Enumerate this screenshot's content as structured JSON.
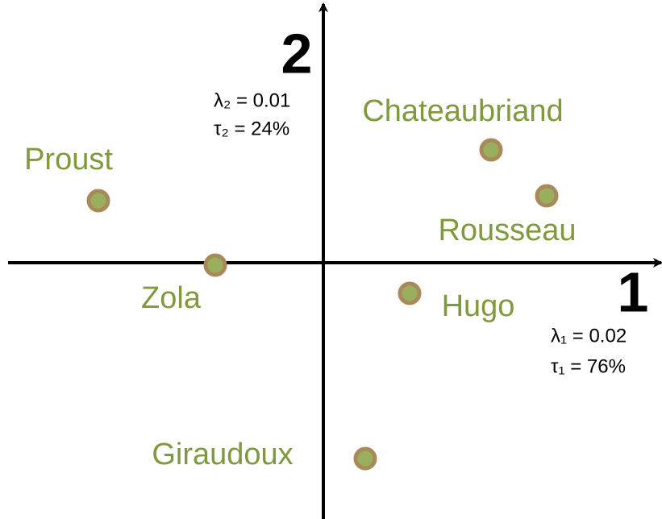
{
  "chart_data": {
    "type": "scatter",
    "labels": [
      "Proust",
      "Zola",
      "Chateaubriand",
      "Rousseau",
      "Hugo",
      "Giraudoux"
    ],
    "x": [
      -2.79,
      -1.34,
      2.08,
      2.77,
      1.07,
      0.52
    ],
    "values": [
      0.77,
      -0.03,
      1.4,
      0.83,
      -0.38,
      -2.43
    ],
    "xlim": [
      -3.91,
      4.19
    ],
    "ylim": [
      -3.14,
      3.21
    ],
    "color": "#9aaf5e",
    "edge_color": "#a88a5a",
    "label_color": "#7f9a3c",
    "x_axis_label": "1",
    "y_axis_label": "2",
    "x_axis_notes": [
      "λ₁ = 0.02",
      "τ₁ = 76%"
    ],
    "y_axis_notes": [
      "λ₂ = 0.01",
      "τ₂ = 24%"
    ]
  }
}
